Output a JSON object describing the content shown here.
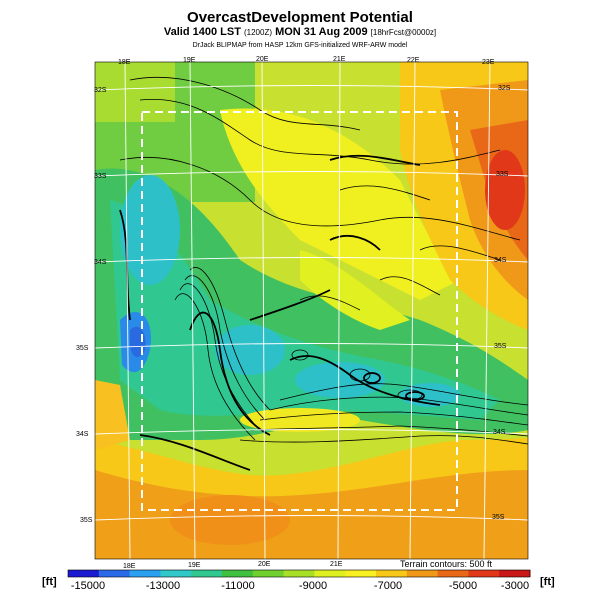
{
  "header": {
    "title": "OvercastDevelopment Potential",
    "valid_prefix": "Valid 1400 LST",
    "valid_z": "(1200Z)",
    "valid_date": "MON 31 Aug 2009",
    "forecast": "[18hrFcst@0000z]",
    "credit": "DrJack BLIPMAP from HASP 12km GFS-initialized WRF-ARW model"
  },
  "map": {
    "lon_labels_top": [
      "18E",
      "19E",
      "20E",
      "21E",
      "22E",
      "23E"
    ],
    "lon_labels_bottom": [
      "18E",
      "19E",
      "20E",
      "21E"
    ],
    "lat_labels_left": [
      "32S",
      "33S",
      "34S",
      "35S",
      "34S",
      "35S"
    ],
    "lat_labels_right": [
      "32S",
      "33S",
      "34S",
      "35S",
      "34S",
      "35S"
    ],
    "terrain_note": "Terrain contours: 500 ft"
  },
  "colorbar": {
    "unit_left": "[ft]",
    "unit_right": "[ft]",
    "labels": [
      "-15000",
      "-13000",
      "-11000",
      "-9000",
      "-7000",
      "-5000",
      "-3000"
    ],
    "colors": [
      "#1a1ad0",
      "#2a6ae8",
      "#2aa0f0",
      "#30c8c8",
      "#30c890",
      "#40c040",
      "#70d030",
      "#a8e028",
      "#dff020",
      "#f8f020",
      "#f8c818",
      "#f09818",
      "#e86818",
      "#e03818",
      "#c81818"
    ]
  }
}
